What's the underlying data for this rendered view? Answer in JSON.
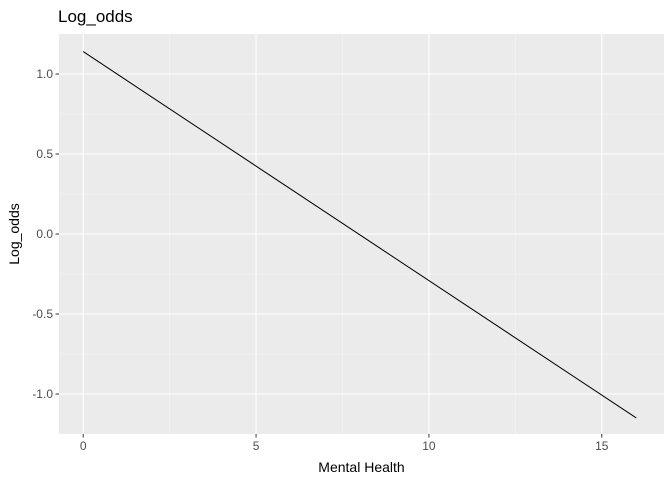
{
  "chart_data": {
    "type": "line",
    "title": "Log_odds",
    "xlabel": "Mental Health",
    "ylabel": "Log_odds",
    "xlim": [
      -0.7,
      16.8
    ],
    "ylim": [
      -1.25,
      1.25
    ],
    "x_ticks": [
      0,
      5,
      10,
      15
    ],
    "x_tick_labels": [
      "0",
      "5",
      "10",
      "15"
    ],
    "y_ticks": [
      -1.0,
      -0.5,
      0.0,
      0.5,
      1.0
    ],
    "y_tick_labels": [
      "-1.0",
      "-0.5",
      "0.0",
      "0.5",
      "1.0"
    ],
    "grid": true,
    "legend": "none",
    "series": [
      {
        "x": [
          0,
          16
        ],
        "y": [
          1.14,
          -1.15
        ]
      }
    ],
    "colors": {
      "panel_background": "#ebebeb",
      "grid_major": "#ffffff",
      "grid_minor": "#f5f5f5",
      "line": "#000000",
      "tick_mark": "#333333"
    }
  }
}
